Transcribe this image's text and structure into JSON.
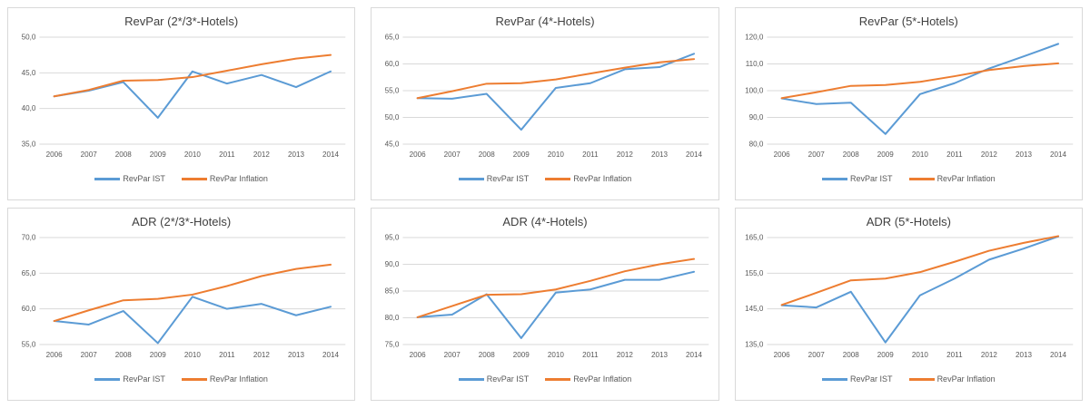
{
  "colors": {
    "ist": "#5B9BD5",
    "inflation": "#ED7D31",
    "gridline": "#D9D9D9",
    "tick_text": "#595959",
    "title_text": "#404040",
    "panel_border": "#D9D9D9"
  },
  "chart_data": [
    {
      "type": "line",
      "title": "RevPar (2*/3*-Hotels)",
      "categories": [
        "2006",
        "2007",
        "2008",
        "2009",
        "2010",
        "2011",
        "2012",
        "2013",
        "2014"
      ],
      "yticks": [
        35,
        40,
        45,
        50
      ],
      "ytick_labels": [
        "35,0",
        "40,0",
        "45,0",
        "50,0"
      ],
      "ylim": [
        35,
        50
      ],
      "grid": true,
      "legend_position": "bottom",
      "series": [
        {
          "name": "RevPar IST",
          "color": "#5B9BD5",
          "values": [
            41.7,
            42.5,
            43.7,
            38.7,
            45.2,
            43.5,
            44.7,
            43.0,
            45.2
          ]
        },
        {
          "name": "RevPar Inflation",
          "color": "#ED7D31",
          "values": [
            41.7,
            42.6,
            43.9,
            44.0,
            44.4,
            45.3,
            46.2,
            47.0,
            47.5
          ]
        }
      ]
    },
    {
      "type": "line",
      "title": "RevPar (4*-Hotels)",
      "categories": [
        "2006",
        "2007",
        "2008",
        "2009",
        "2010",
        "2011",
        "2012",
        "2013",
        "2014"
      ],
      "yticks": [
        45,
        50,
        55,
        60,
        65
      ],
      "ytick_labels": [
        "45,0",
        "50,0",
        "55,0",
        "60,0",
        "65,0"
      ],
      "ylim": [
        45,
        65
      ],
      "grid": true,
      "legend_position": "bottom",
      "series": [
        {
          "name": "RevPar IST",
          "color": "#5B9BD5",
          "values": [
            53.6,
            53.5,
            54.4,
            47.7,
            55.5,
            56.4,
            59.0,
            59.4,
            61.9
          ]
        },
        {
          "name": "RevPar Inflation",
          "color": "#ED7D31",
          "values": [
            53.6,
            54.9,
            56.3,
            56.4,
            57.1,
            58.2,
            59.3,
            60.3,
            60.9
          ]
        }
      ]
    },
    {
      "type": "line",
      "title": "RevPar (5*-Hotels)",
      "categories": [
        "2006",
        "2007",
        "2008",
        "2009",
        "2010",
        "2011",
        "2012",
        "2013",
        "2014"
      ],
      "yticks": [
        80,
        90,
        100,
        110,
        120
      ],
      "ytick_labels": [
        "80,0",
        "90,0",
        "100,0",
        "110,0",
        "120,0"
      ],
      "ylim": [
        80,
        120
      ],
      "grid": true,
      "legend_position": "bottom",
      "series": [
        {
          "name": "RevPar IST",
          "color": "#5B9BD5",
          "values": [
            97.1,
            95.0,
            95.5,
            83.8,
            98.7,
            102.8,
            108.3,
            112.8,
            117.5
          ]
        },
        {
          "name": "RevPar Inflation",
          "color": "#ED7D31",
          "values": [
            97.2,
            99.4,
            101.8,
            102.1,
            103.3,
            105.4,
            107.7,
            109.2,
            110.2
          ]
        }
      ]
    },
    {
      "type": "line",
      "title": "ADR (2*/3*-Hotels)",
      "categories": [
        "2006",
        "2007",
        "2008",
        "2009",
        "2010",
        "2011",
        "2012",
        "2013",
        "2014"
      ],
      "yticks": [
        55,
        60,
        65,
        70
      ],
      "ytick_labels": [
        "55,0",
        "60,0",
        "65,0",
        "70,0"
      ],
      "ylim": [
        55,
        70
      ],
      "grid": true,
      "legend_position": "bottom",
      "series": [
        {
          "name": "RevPar IST",
          "color": "#5B9BD5",
          "values": [
            58.3,
            57.8,
            59.7,
            55.2,
            61.7,
            60.0,
            60.7,
            59.1,
            60.3
          ]
        },
        {
          "name": "RevPar Inflation",
          "color": "#ED7D31",
          "values": [
            58.3,
            59.8,
            61.2,
            61.4,
            62.0,
            63.2,
            64.6,
            65.6,
            66.2
          ]
        }
      ]
    },
    {
      "type": "line",
      "title": "ADR (4*-Hotels)",
      "categories": [
        "2006",
        "2007",
        "2008",
        "2009",
        "2010",
        "2011",
        "2012",
        "2013",
        "2014"
      ],
      "yticks": [
        75,
        80,
        85,
        90,
        95
      ],
      "ytick_labels": [
        "75,0",
        "80,0",
        "85,0",
        "90,0",
        "95,0"
      ],
      "ylim": [
        75,
        95
      ],
      "grid": true,
      "legend_position": "bottom",
      "series": [
        {
          "name": "RevPar IST",
          "color": "#5B9BD5",
          "values": [
            80.1,
            80.6,
            84.4,
            76.2,
            84.7,
            85.3,
            87.1,
            87.1,
            88.6
          ]
        },
        {
          "name": "RevPar Inflation",
          "color": "#ED7D31",
          "values": [
            80.1,
            82.2,
            84.3,
            84.4,
            85.3,
            86.9,
            88.7,
            90.0,
            91.0
          ]
        }
      ]
    },
    {
      "type": "line",
      "title": "ADR (5*-Hotels)",
      "categories": [
        "2006",
        "2007",
        "2008",
        "2009",
        "2010",
        "2011",
        "2012",
        "2013",
        "2014"
      ],
      "yticks": [
        135,
        145,
        155,
        165
      ],
      "ytick_labels": [
        "135,0",
        "145,0",
        "155,0",
        "165,0"
      ],
      "ylim": [
        135,
        165
      ],
      "grid": true,
      "legend_position": "bottom",
      "series": [
        {
          "name": "RevPar IST",
          "color": "#5B9BD5",
          "values": [
            146.0,
            145.4,
            149.8,
            135.6,
            148.8,
            153.5,
            158.8,
            161.9,
            165.3
          ]
        },
        {
          "name": "RevPar Inflation",
          "color": "#ED7D31",
          "values": [
            146.1,
            149.5,
            153.0,
            153.5,
            155.3,
            158.2,
            161.3,
            163.5,
            165.4
          ]
        }
      ]
    }
  ]
}
